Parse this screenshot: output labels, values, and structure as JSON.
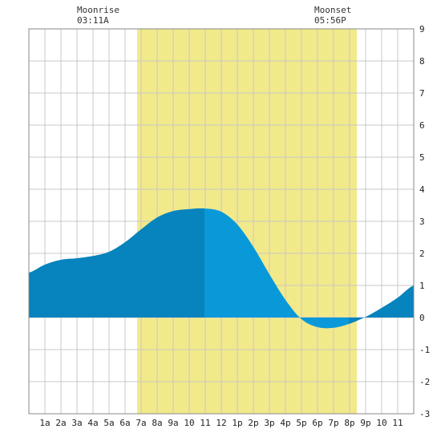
{
  "moonrise": {
    "label": "Moonrise",
    "time": "03:11A"
  },
  "moonset": {
    "label": "Moonset",
    "time": "05:56P"
  },
  "chart_data": {
    "type": "area",
    "title": "",
    "xlabel": "",
    "ylabel": "",
    "xlim": [
      0,
      24
    ],
    "ylim": [
      -3,
      9
    ],
    "grid": true,
    "x_tick_labels": [
      "1a",
      "2a",
      "3a",
      "4a",
      "5a",
      "6a",
      "7a",
      "8a",
      "9a",
      "10",
      "11",
      "12",
      "1p",
      "2p",
      "3p",
      "4p",
      "5p",
      "6p",
      "7p",
      "8p",
      "9p",
      "10",
      "11"
    ],
    "y_ticks": [
      -3,
      -2,
      -1,
      0,
      1,
      2,
      3,
      4,
      5,
      6,
      7,
      8,
      9
    ],
    "daylight_band": {
      "start": 6.75,
      "end": 20.45,
      "color": "#f2e98a"
    },
    "tide": {
      "x": [
        0,
        1,
        2,
        3,
        4,
        5,
        6,
        7,
        8,
        9,
        10,
        10.95,
        12,
        13,
        14,
        15,
        16,
        17,
        18,
        19,
        19.95,
        21,
        22,
        23,
        24
      ],
      "y": [
        1.4,
        1.65,
        1.8,
        1.85,
        1.92,
        2.05,
        2.35,
        2.75,
        3.12,
        3.32,
        3.38,
        3.4,
        3.3,
        2.9,
        2.2,
        1.35,
        0.55,
        -0.05,
        -0.3,
        -0.32,
        -0.2,
        0.02,
        0.3,
        0.62,
        1.0
      ],
      "colors": {
        "dark": "#0783bd",
        "light": "#0999d9"
      },
      "shade_changes_at": [
        10.95,
        19.95
      ]
    }
  }
}
